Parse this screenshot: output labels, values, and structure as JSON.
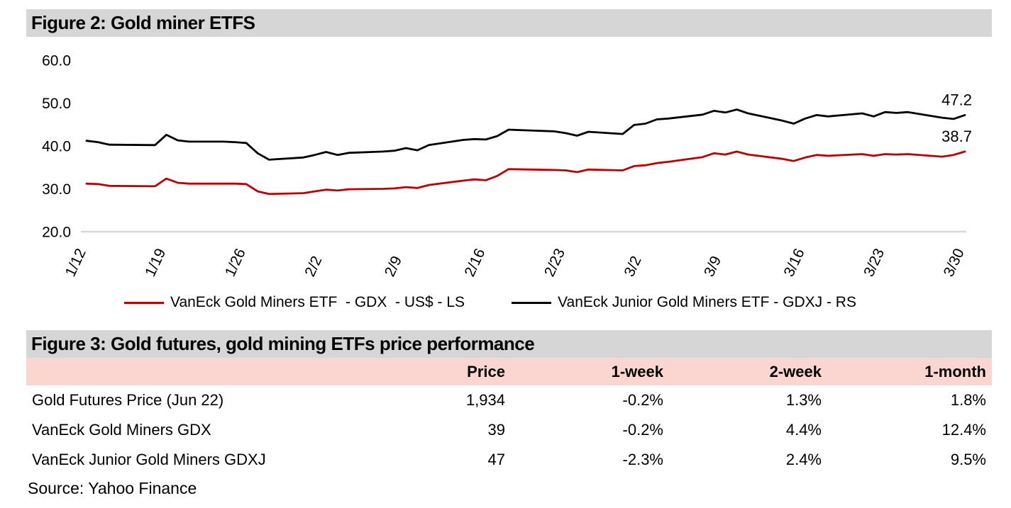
{
  "figure2": {
    "title": "Figure 2: Gold miner ETFS"
  },
  "chart_data": {
    "type": "line",
    "title": "Figure 2: Gold miner ETFS",
    "x": [
      "1/12",
      "1/13",
      "1/14",
      "1/18",
      "1/19",
      "1/20",
      "1/21",
      "1/24",
      "1/25",
      "1/26",
      "1/27",
      "1/28",
      "1/31",
      "2/1",
      "2/2",
      "2/3",
      "2/4",
      "2/7",
      "2/8",
      "2/9",
      "2/10",
      "2/11",
      "2/14",
      "2/15",
      "2/16",
      "2/17",
      "2/18",
      "2/22",
      "2/23",
      "2/24",
      "2/25",
      "2/28",
      "3/1",
      "3/2",
      "3/3",
      "3/4",
      "3/7",
      "3/8",
      "3/9",
      "3/10",
      "3/11",
      "3/14",
      "3/15",
      "3/16",
      "3/17",
      "3/18",
      "3/21",
      "3/22",
      "3/23",
      "3/24",
      "3/25",
      "3/28",
      "3/29",
      "3/30"
    ],
    "series": [
      {
        "name": "VanEck Gold Miners ETF  - GDX  - US$ - LS",
        "ticker": "GDX",
        "axis_side": "LS",
        "color": "#C00000",
        "end_label": "38.7",
        "values": [
          31.2,
          31.1,
          30.7,
          30.6,
          32.4,
          31.4,
          31.2,
          31.2,
          31.2,
          31.1,
          29.4,
          28.8,
          29.0,
          29.4,
          29.8,
          29.6,
          29.9,
          30.0,
          30.1,
          30.4,
          30.2,
          30.9,
          31.9,
          32.2,
          32.0,
          33.0,
          34.6,
          34.4,
          34.3,
          33.9,
          34.5,
          34.3,
          35.3,
          35.5,
          36.0,
          36.3,
          37.4,
          38.3,
          38.0,
          38.7,
          38.0,
          37.0,
          36.5,
          37.3,
          37.9,
          37.7,
          38.1,
          37.7,
          38.1,
          38.0,
          38.1,
          37.5,
          37.9,
          38.7
        ]
      },
      {
        "name": "VanEck Junior Gold Miners ETF - GDXJ - RS",
        "ticker": "GDXJ",
        "axis_side": "RS",
        "color": "#000000",
        "end_label": "47.2",
        "values": [
          41.2,
          40.9,
          40.3,
          40.2,
          42.6,
          41.3,
          41.0,
          41.0,
          40.9,
          40.7,
          38.3,
          36.8,
          37.3,
          37.9,
          38.6,
          37.9,
          38.4,
          38.7,
          38.9,
          39.5,
          39.0,
          40.2,
          41.4,
          41.6,
          41.5,
          42.3,
          43.8,
          43.4,
          43.0,
          42.4,
          43.3,
          42.8,
          44.9,
          45.2,
          46.2,
          46.4,
          47.3,
          48.2,
          47.8,
          48.5,
          47.6,
          45.9,
          45.2,
          46.4,
          47.2,
          46.9,
          47.6,
          46.9,
          47.9,
          47.7,
          47.9,
          46.6,
          46.3,
          47.2
        ]
      }
    ],
    "ylim": [
      20,
      60
    ],
    "yticks": [
      60,
      50,
      40,
      30,
      20
    ],
    "ytick_labels": [
      "60.0",
      "50.0",
      "40.0",
      "30.0",
      "20.0"
    ],
    "xtick_labels": [
      "1/12",
      "1/19",
      "1/26",
      "2/2",
      "2/9",
      "2/16",
      "2/23",
      "3/2",
      "3/9",
      "3/16",
      "3/23",
      "3/30"
    ],
    "grid": false,
    "legend_position": "bottom"
  },
  "figure3": {
    "title": "Figure 3: Gold futures, gold mining ETFs price performance",
    "table": {
      "columns": [
        "",
        "Price",
        "1-week",
        "2-week",
        "1-month"
      ],
      "rows": [
        [
          "Gold Futures Price (Jun 22)",
          "1,934",
          "-0.2%",
          "1.3%",
          "1.8%"
        ],
        [
          "VanEck Gold Miners GDX",
          "39",
          "-0.2%",
          "4.4%",
          "12.4%"
        ],
        [
          "VanEck Junior Gold Miners GDXJ",
          "47",
          "-2.3%",
          "2.4%",
          "9.5%"
        ]
      ]
    }
  },
  "source": "Source: Yahoo Finance",
  "colors": {
    "header_bar_bg": "#D6D6D6",
    "table_header_bg": "#FBD6D1",
    "gdx_red": "#C00000",
    "gdxj_black": "#000000",
    "axis_line": "#D9D9D9"
  }
}
